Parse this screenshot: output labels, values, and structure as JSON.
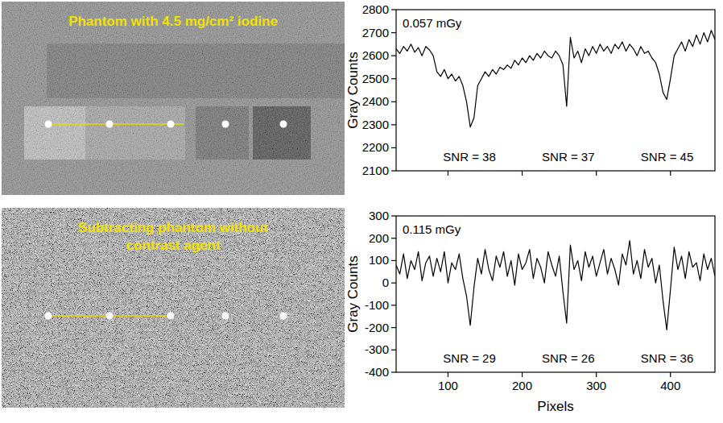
{
  "images": [
    {
      "title": "Phantom with 4.5 mg/cm² iodine"
    },
    {
      "title": "Subtracting phantom without contrast agent"
    }
  ],
  "chart_data": [
    {
      "type": "line",
      "y_label": "Gray Counts",
      "annotations": [
        "0.057 mGy",
        "SNR = 38",
        "SNR = 37",
        "SNR = 45"
      ],
      "color": "#000000",
      "grid": false,
      "tick_labels": "y",
      "xlim": [
        30,
        460
      ],
      "xticks": [
        100,
        200,
        300,
        400
      ],
      "ylim": [
        2100,
        2800
      ],
      "yticks": [
        2100,
        2200,
        2300,
        2400,
        2500,
        2600,
        2700,
        2800
      ],
      "x": [
        30,
        35,
        40,
        45,
        50,
        55,
        60,
        65,
        70,
        75,
        80,
        85,
        90,
        95,
        100,
        105,
        110,
        115,
        120,
        125,
        130,
        135,
        140,
        145,
        150,
        155,
        160,
        165,
        170,
        175,
        180,
        185,
        190,
        195,
        200,
        205,
        210,
        215,
        220,
        225,
        230,
        235,
        240,
        245,
        250,
        255,
        260,
        265,
        270,
        275,
        280,
        285,
        290,
        295,
        300,
        305,
        310,
        315,
        320,
        325,
        330,
        335,
        340,
        345,
        350,
        355,
        360,
        365,
        370,
        375,
        380,
        385,
        390,
        395,
        400,
        405,
        410,
        415,
        420,
        425,
        430,
        435,
        440,
        445,
        450,
        455,
        460
      ],
      "values": [
        2630,
        2610,
        2640,
        2620,
        2650,
        2615,
        2635,
        2600,
        2640,
        2625,
        2600,
        2530,
        2510,
        2540,
        2500,
        2520,
        2490,
        2510,
        2470,
        2400,
        2290,
        2330,
        2470,
        2500,
        2530,
        2510,
        2540,
        2520,
        2550,
        2540,
        2560,
        2545,
        2580,
        2560,
        2590,
        2570,
        2600,
        2580,
        2610,
        2590,
        2620,
        2600,
        2590,
        2620,
        2600,
        2560,
        2380,
        2680,
        2590,
        2620,
        2570,
        2630,
        2600,
        2640,
        2610,
        2650,
        2620,
        2640,
        2610,
        2650,
        2630,
        2660,
        2620,
        2650,
        2630,
        2600,
        2640,
        2610,
        2620,
        2590,
        2570,
        2520,
        2440,
        2410,
        2500,
        2600,
        2630,
        2660,
        2620,
        2670,
        2640,
        2690,
        2650,
        2700,
        2660,
        2710,
        2670
      ]
    },
    {
      "type": "line",
      "y_label": "Gray Counts",
      "x_label": "Pixels",
      "annotations": [
        "0.115 mGy",
        "SNR = 29",
        "SNR = 26",
        "SNR = 36"
      ],
      "color": "#000000",
      "grid": false,
      "xlim": [
        30,
        460
      ],
      "xticks": [
        100,
        200,
        300,
        400
      ],
      "ylim": [
        -400,
        300
      ],
      "yticks": [
        -400,
        -300,
        -200,
        -100,
        0,
        100,
        200,
        300
      ],
      "x": [
        30,
        35,
        40,
        45,
        50,
        55,
        60,
        65,
        70,
        75,
        80,
        85,
        90,
        95,
        100,
        105,
        110,
        115,
        120,
        125,
        130,
        135,
        140,
        145,
        150,
        155,
        160,
        165,
        170,
        175,
        180,
        185,
        190,
        195,
        200,
        205,
        210,
        215,
        220,
        225,
        230,
        235,
        240,
        245,
        250,
        255,
        260,
        265,
        270,
        275,
        280,
        285,
        290,
        295,
        300,
        305,
        310,
        315,
        320,
        325,
        330,
        335,
        340,
        345,
        350,
        355,
        360,
        365,
        370,
        375,
        380,
        385,
        390,
        395,
        400,
        405,
        410,
        415,
        420,
        425,
        430,
        435,
        440,
        445,
        450,
        455,
        460
      ],
      "values": [
        80,
        40,
        130,
        20,
        100,
        60,
        140,
        10,
        90,
        120,
        30,
        110,
        50,
        140,
        0,
        90,
        60,
        130,
        20,
        -60,
        -190,
        -20,
        110,
        40,
        150,
        60,
        10,
        120,
        70,
        140,
        30,
        100,
        -10,
        130,
        60,
        90,
        150,
        20,
        110,
        70,
        0,
        140,
        80,
        30,
        120,
        -40,
        -180,
        170,
        60,
        100,
        10,
        140,
        70,
        120,
        30,
        90,
        150,
        40,
        110,
        60,
        -10,
        130,
        80,
        190,
        40,
        100,
        20,
        150,
        70,
        110,
        0,
        80,
        -80,
        -210,
        -30,
        160,
        60,
        120,
        20,
        140,
        70,
        90,
        10,
        130,
        60,
        110,
        30
      ]
    }
  ]
}
